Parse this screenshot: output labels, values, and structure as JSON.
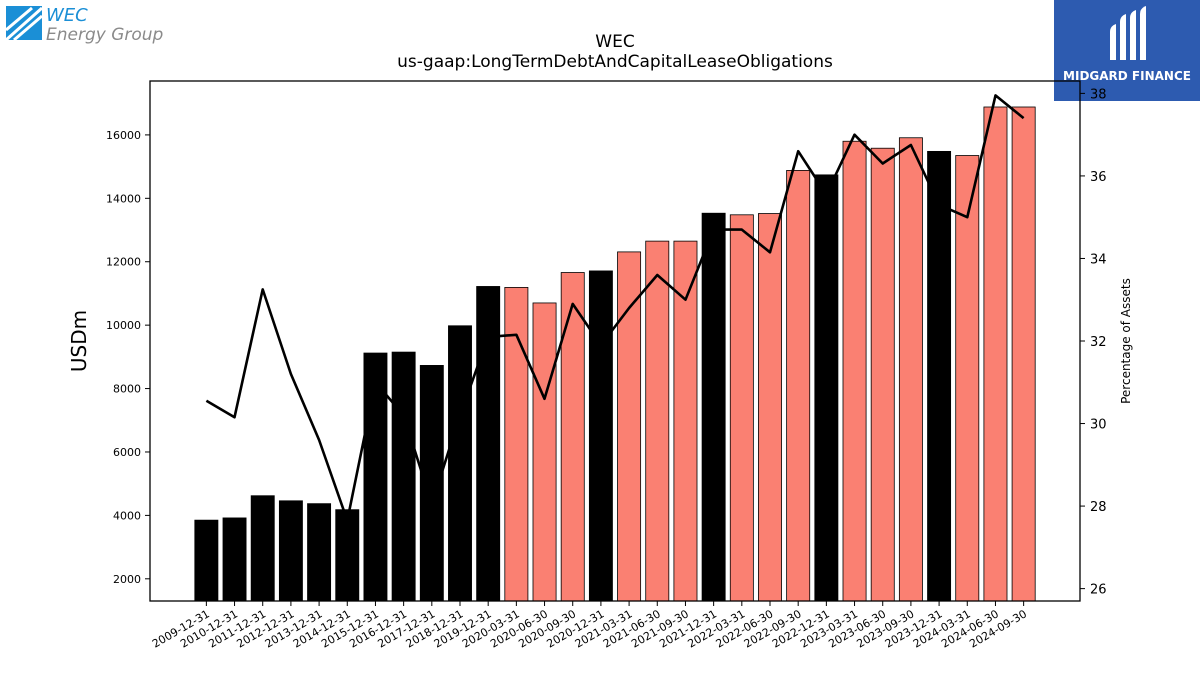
{
  "branding": {
    "wec_logo": {
      "name_line1": "WEC",
      "name_line2": "Energy Group",
      "color_primary": "#1b8fd6",
      "color_secondary": "#8a8a8a"
    },
    "midgard_logo": {
      "label": "MIDGARD FINANCE",
      "bg_color": "#2d5bb0"
    }
  },
  "chart_data": {
    "type": "bar",
    "title": "WEC",
    "subtitle": "us-gaap:LongTermDebtAndCapitalLeaseObligations",
    "ylabel": "USDm",
    "y2label": "Percentage of Assets",
    "ylim": [
      1300,
      17700
    ],
    "y2lim": [
      25.7,
      38.3
    ],
    "yticks": [
      2000,
      4000,
      6000,
      8000,
      10000,
      12000,
      14000,
      16000
    ],
    "y2ticks": [
      26,
      28,
      30,
      32,
      34,
      36,
      38
    ],
    "categories": [
      "2009-12-31",
      "2010-12-31",
      "2011-12-31",
      "2012-12-31",
      "2013-12-31",
      "2014-12-31",
      "2015-12-31",
      "2016-12-31",
      "2017-12-31",
      "2018-12-31",
      "2019-12-31",
      "2020-03-31",
      "2020-06-30",
      "2020-09-30",
      "2020-12-31",
      "2021-03-31",
      "2021-06-30",
      "2021-09-30",
      "2021-12-31",
      "2022-03-31",
      "2022-06-30",
      "2022-09-30",
      "2022-12-31",
      "2023-03-31",
      "2023-06-30",
      "2023-09-30",
      "2023-12-31",
      "2024-03-31",
      "2024-06-30",
      "2024-09-30"
    ],
    "series": [
      {
        "type": "bar",
        "values": [
          3850,
          3920,
          4620,
          4460,
          4370,
          4180,
          9120,
          9150,
          8730,
          9980,
          11220,
          11190,
          10700,
          11660,
          11710,
          12310,
          12650,
          12650,
          13530,
          13480,
          13520,
          14880,
          14740,
          15800,
          15580,
          15910,
          15480,
          15350,
          16880,
          16880
        ],
        "colors_by_period": {
          "annual": "#000000",
          "quarterly": "#fa8072"
        },
        "period": [
          "annual",
          "annual",
          "annual",
          "annual",
          "annual",
          "annual",
          "annual",
          "annual",
          "annual",
          "annual",
          "annual",
          "quarterly",
          "quarterly",
          "quarterly",
          "annual",
          "quarterly",
          "quarterly",
          "quarterly",
          "annual",
          "quarterly",
          "quarterly",
          "quarterly",
          "annual",
          "quarterly",
          "quarterly",
          "quarterly",
          "annual",
          "quarterly",
          "quarterly",
          "quarterly"
        ]
      },
      {
        "type": "line",
        "axis": "right",
        "color": "#000000",
        "values": [
          30.55,
          30.15,
          33.25,
          31.2,
          29.6,
          27.65,
          31.0,
          30.2,
          28.05,
          30.2,
          32.1,
          32.15,
          30.6,
          32.9,
          31.9,
          32.8,
          33.6,
          33.0,
          34.7,
          34.7,
          34.15,
          36.6,
          35.55,
          37.0,
          36.3,
          36.75,
          35.3,
          35.0,
          37.95,
          37.4
        ]
      }
    ]
  }
}
